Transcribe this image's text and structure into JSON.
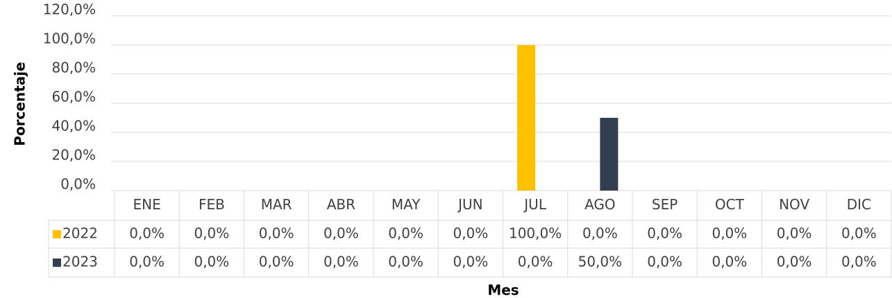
{
  "chart_data": {
    "type": "bar",
    "y_label": "Porcentaje",
    "x_label": "Mes",
    "categories": [
      "ENE",
      "FEB",
      "MAR",
      "ABR",
      "MAY",
      "JUN",
      "JUL",
      "AGO",
      "SEP",
      "OCT",
      "NOV",
      "DIC"
    ],
    "series": [
      {
        "name": "2022",
        "color": "#ffc000",
        "values": [
          0,
          0,
          0,
          0,
          0,
          0,
          100,
          0,
          0,
          0,
          0,
          0
        ],
        "value_labels": [
          "0,0%",
          "0,0%",
          "0,0%",
          "0,0%",
          "0,0%",
          "0,0%",
          "100,0%",
          "0,0%",
          "0,0%",
          "0,0%",
          "0,0%",
          "0,0%"
        ]
      },
      {
        "name": "2023",
        "color": "#333f50",
        "values": [
          0,
          0,
          0,
          0,
          0,
          0,
          0,
          50,
          0,
          0,
          0,
          0
        ],
        "value_labels": [
          "0,0%",
          "0,0%",
          "0,0%",
          "0,0%",
          "0,0%",
          "0,0%",
          "0,0%",
          "50,0%",
          "0,0%",
          "0,0%",
          "0,0%",
          "0,0%"
        ]
      }
    ],
    "ylim": [
      0,
      120
    ],
    "yticks": [
      {
        "value": 0,
        "label": "0,0%"
      },
      {
        "value": 20,
        "label": "20,0%"
      },
      {
        "value": 40,
        "label": "40,0%"
      },
      {
        "value": 60,
        "label": "60,0%"
      },
      {
        "value": 80,
        "label": "80,0%"
      },
      {
        "value": 100,
        "label": "100,0%"
      },
      {
        "value": 120,
        "label": "120,0%"
      }
    ],
    "grid": true
  }
}
